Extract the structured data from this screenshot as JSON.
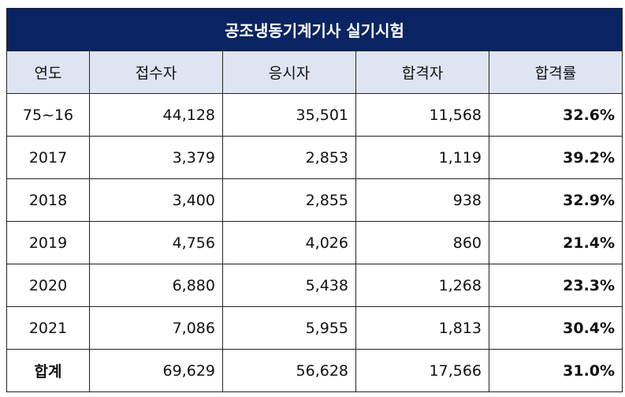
{
  "title": "공조냉동기계기사 실기시험",
  "headers": [
    "연도",
    "접수자",
    "응시자",
    "합격자",
    "합격률"
  ],
  "rows": [
    {
      "year": "75~16",
      "applicants": "44,128",
      "examinees": "35,501",
      "passers": "11,568",
      "rate": "32.6%"
    },
    {
      "year": "2017",
      "applicants": "3,379",
      "examinees": "2,853",
      "passers": "1,119",
      "rate": "39.2%"
    },
    {
      "year": "2018",
      "applicants": "3,400",
      "examinees": "2,855",
      "passers": "938",
      "rate": "32.9%"
    },
    {
      "year": "2019",
      "applicants": "4,756",
      "examinees": "4,026",
      "passers": "860",
      "rate": "21.4%"
    },
    {
      "year": "2020",
      "applicants": "6,880",
      "examinees": "5,438",
      "passers": "1,268",
      "rate": "23.3%"
    },
    {
      "year": "2021",
      "applicants": "7,086",
      "examinees": "5,955",
      "passers": "1,813",
      "rate": "30.4%"
    }
  ],
  "total": {
    "year": "합계",
    "applicants": "69,629",
    "examinees": "56,628",
    "passers": "17,566",
    "rate": "31.0%"
  },
  "colors": {
    "title_bg": "#0a2463",
    "header_bg": "#dfe4f2",
    "border": "#222222"
  }
}
